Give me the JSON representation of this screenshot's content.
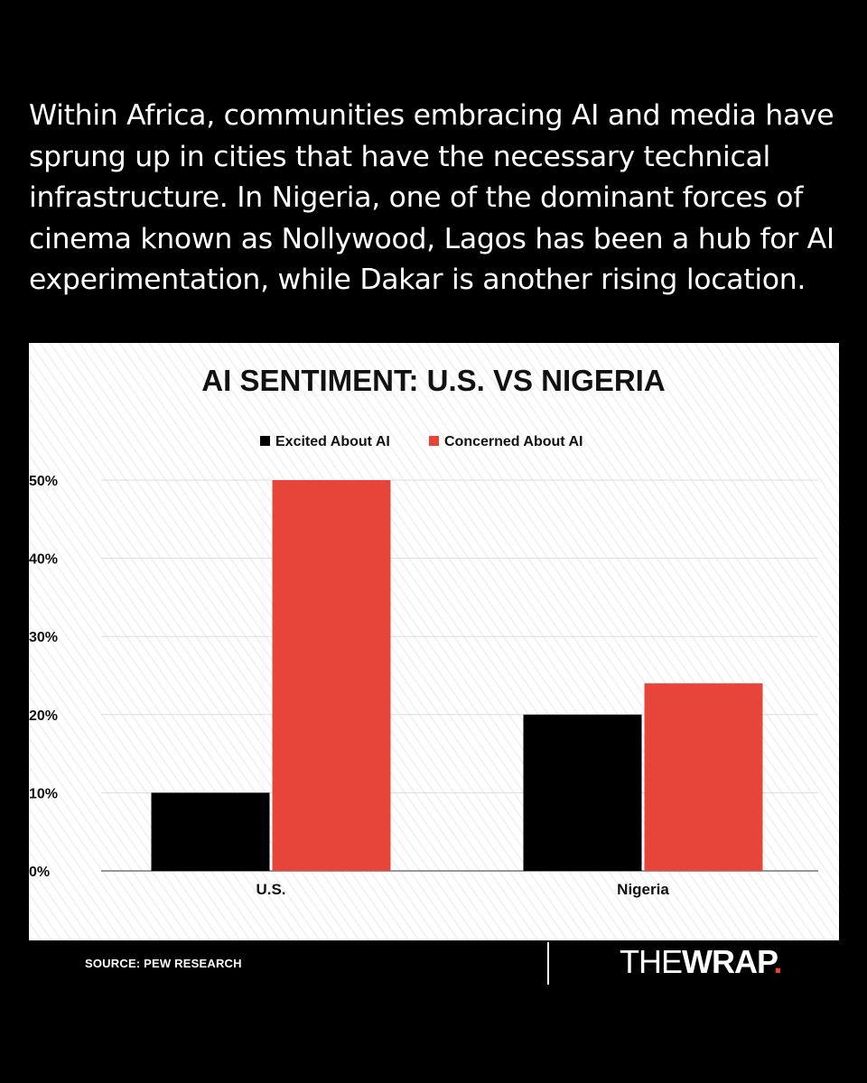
{
  "intro_text": "Within Africa, communities embracing AI and media have sprung up in cities that have the necessary technical infrastructure. In Nigeria, one of the dominant forces of cinema known as Nollywood, Lagos has been a hub for AI experimentation, while Dakar is another rising location.",
  "chart_data": {
    "type": "bar",
    "title": "AI SENTIMENT: U.S. VS NIGERIA",
    "categories": [
      "U.S.",
      "Nigeria"
    ],
    "series": [
      {
        "name": "Excited About AI",
        "values": [
          10,
          20
        ],
        "color": "#000000"
      },
      {
        "name": "Concerned About AI",
        "values": [
          50,
          24
        ],
        "color": "#e8453a"
      }
    ],
    "y_ticks": [
      "0%",
      "10%",
      "20%",
      "30%",
      "40%",
      "50%"
    ],
    "ylim": [
      0,
      50
    ],
    "grid": true,
    "legend_position": "top-center",
    "xlabel": "",
    "ylabel": ""
  },
  "footer": {
    "source": "SOURCE: PEW RESEARCH",
    "logo_part1": "THE",
    "logo_part2": "WRAP",
    "logo_dot": ".",
    "logo_dot_color": "#e8453a"
  }
}
